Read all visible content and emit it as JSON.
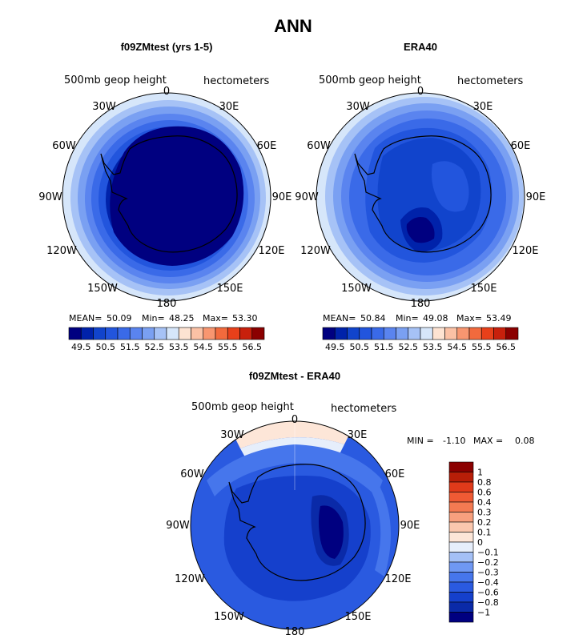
{
  "title": "ANN",
  "panels": [
    {
      "id": "model",
      "title": "f09ZMtest (yrs 1-5)",
      "field_label": "500mb geop height",
      "units_label": "hectometers",
      "lon_labels": [
        "0",
        "30E",
        "60E",
        "90E",
        "120E",
        "150E",
        "180",
        "150W",
        "120W",
        "90W",
        "60W",
        "30W"
      ],
      "stats": {
        "mean_label": "MEAN=",
        "mean": "50.09",
        "min_label": "Min=",
        "min": "48.25",
        "max_label": "Max=",
        "max": "53.30"
      },
      "colorbar": {
        "colors": [
          "#000080",
          "#0022aa",
          "#1144cc",
          "#2255dd",
          "#3a6ae8",
          "#5a84ef",
          "#7aa0f2",
          "#a6c2f6",
          "#d6e6fa",
          "#fde3d2",
          "#fbc1a5",
          "#f89670",
          "#f26a3d",
          "#e8401a",
          "#c8200c",
          "#8b0000"
        ],
        "ticks": [
          "49.5",
          "50.5",
          "51.5",
          "52.5",
          "53.5",
          "54.5",
          "55.5",
          "56.5"
        ]
      }
    },
    {
      "id": "obs",
      "title": "ERA40",
      "field_label": "500mb geop height",
      "units_label": "hectometers",
      "lon_labels": [
        "0",
        "30E",
        "60E",
        "90E",
        "120E",
        "150E",
        "180",
        "150W",
        "120W",
        "90W",
        "60W",
        "30W"
      ],
      "stats": {
        "mean_label": "MEAN=",
        "mean": "50.84",
        "min_label": "Min=",
        "min": "49.08",
        "max_label": "Max=",
        "max": "53.49"
      },
      "colorbar": {
        "colors": [
          "#000080",
          "#0022aa",
          "#1144cc",
          "#2255dd",
          "#3a6ae8",
          "#5a84ef",
          "#7aa0f2",
          "#a6c2f6",
          "#d6e6fa",
          "#fde3d2",
          "#fbc1a5",
          "#f89670",
          "#f26a3d",
          "#e8401a",
          "#c8200c",
          "#8b0000"
        ],
        "ticks": [
          "49.5",
          "50.5",
          "51.5",
          "52.5",
          "53.5",
          "54.5",
          "55.5",
          "56.5"
        ]
      }
    },
    {
      "id": "diff",
      "title": "f09ZMtest - ERA40",
      "field_label": "500mb geop height",
      "units_label": "hectometers",
      "lon_labels": [
        "0",
        "30E",
        "60E",
        "90E",
        "120E",
        "150E",
        "180",
        "150W",
        "120W",
        "90W",
        "60W",
        "30W"
      ],
      "stats": {
        "min_label": "MIN =",
        "min": "-1.10",
        "max_label": "MAX =",
        "max": "0.08"
      },
      "colorbar": {
        "colors": [
          "#000080",
          "#0a2aa8",
          "#1540cc",
          "#2a5ae0",
          "#4676ec",
          "#6f98f3",
          "#a4c0f6",
          "#e6eefb",
          "#fde6d8",
          "#fbc7ae",
          "#f8a07e",
          "#f47a52",
          "#ef5a34",
          "#e03a1a",
          "#b81e08",
          "#8b0000"
        ],
        "ticks": [
          "−1",
          "−0.8",
          "−0.6",
          "−0.4",
          "−0.3",
          "−0.2",
          "−0.1",
          "0",
          "0.1",
          "0.2",
          "0.3",
          "0.4",
          "0.6",
          "0.8",
          "1"
        ]
      }
    }
  ]
}
